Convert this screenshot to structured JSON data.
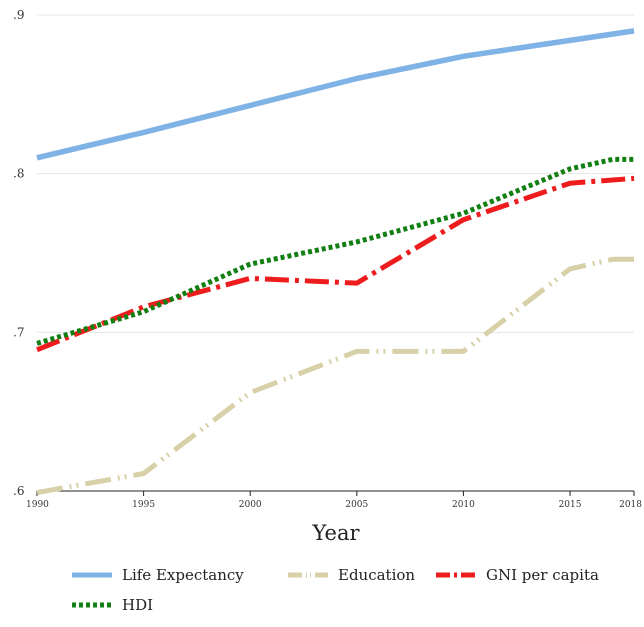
{
  "chart_data": {
    "type": "line",
    "title": "",
    "xlabel": "Year",
    "ylabel": "",
    "xlim": [
      1990,
      2018
    ],
    "ylim": [
      0.6,
      0.9
    ],
    "x_ticks": [
      "1990",
      "1995",
      "2000",
      "2005",
      "2010",
      "2015",
      "2018"
    ],
    "y_ticks": [
      ".6",
      ".7",
      ".8",
      ".9"
    ],
    "grid": "horizontal",
    "legend_position": "bottom",
    "series": [
      {
        "name": "Life Expectancy",
        "color": "#7fb2e5",
        "style": "solid",
        "x": [
          1990,
          1995,
          2000,
          2005,
          2010,
          2015,
          2018
        ],
        "values": [
          0.81,
          0.826,
          0.843,
          0.86,
          0.874,
          0.884,
          0.89
        ]
      },
      {
        "name": "Education",
        "color": "#d8d0a8",
        "style": "dash-dot-dot",
        "x": [
          1990,
          1995,
          2000,
          2005,
          2010,
          2015,
          2017,
          2018
        ],
        "values": [
          0.599,
          0.611,
          0.662,
          0.688,
          0.688,
          0.74,
          0.746,
          0.746
        ]
      },
      {
        "name": "GNI per capita",
        "color": "#ee1c1c",
        "style": "dash-dot",
        "x": [
          1990,
          1995,
          2000,
          2005,
          2010,
          2015,
          2018
        ],
        "values": [
          0.689,
          0.716,
          0.734,
          0.731,
          0.771,
          0.794,
          0.797
        ]
      },
      {
        "name": "HDI",
        "color": "#127f12",
        "style": "dotted",
        "x": [
          1990,
          1995,
          2000,
          2005,
          2010,
          2015,
          2017,
          2018
        ],
        "values": [
          0.693,
          0.713,
          0.743,
          0.757,
          0.775,
          0.803,
          0.809,
          0.809
        ]
      }
    ]
  }
}
